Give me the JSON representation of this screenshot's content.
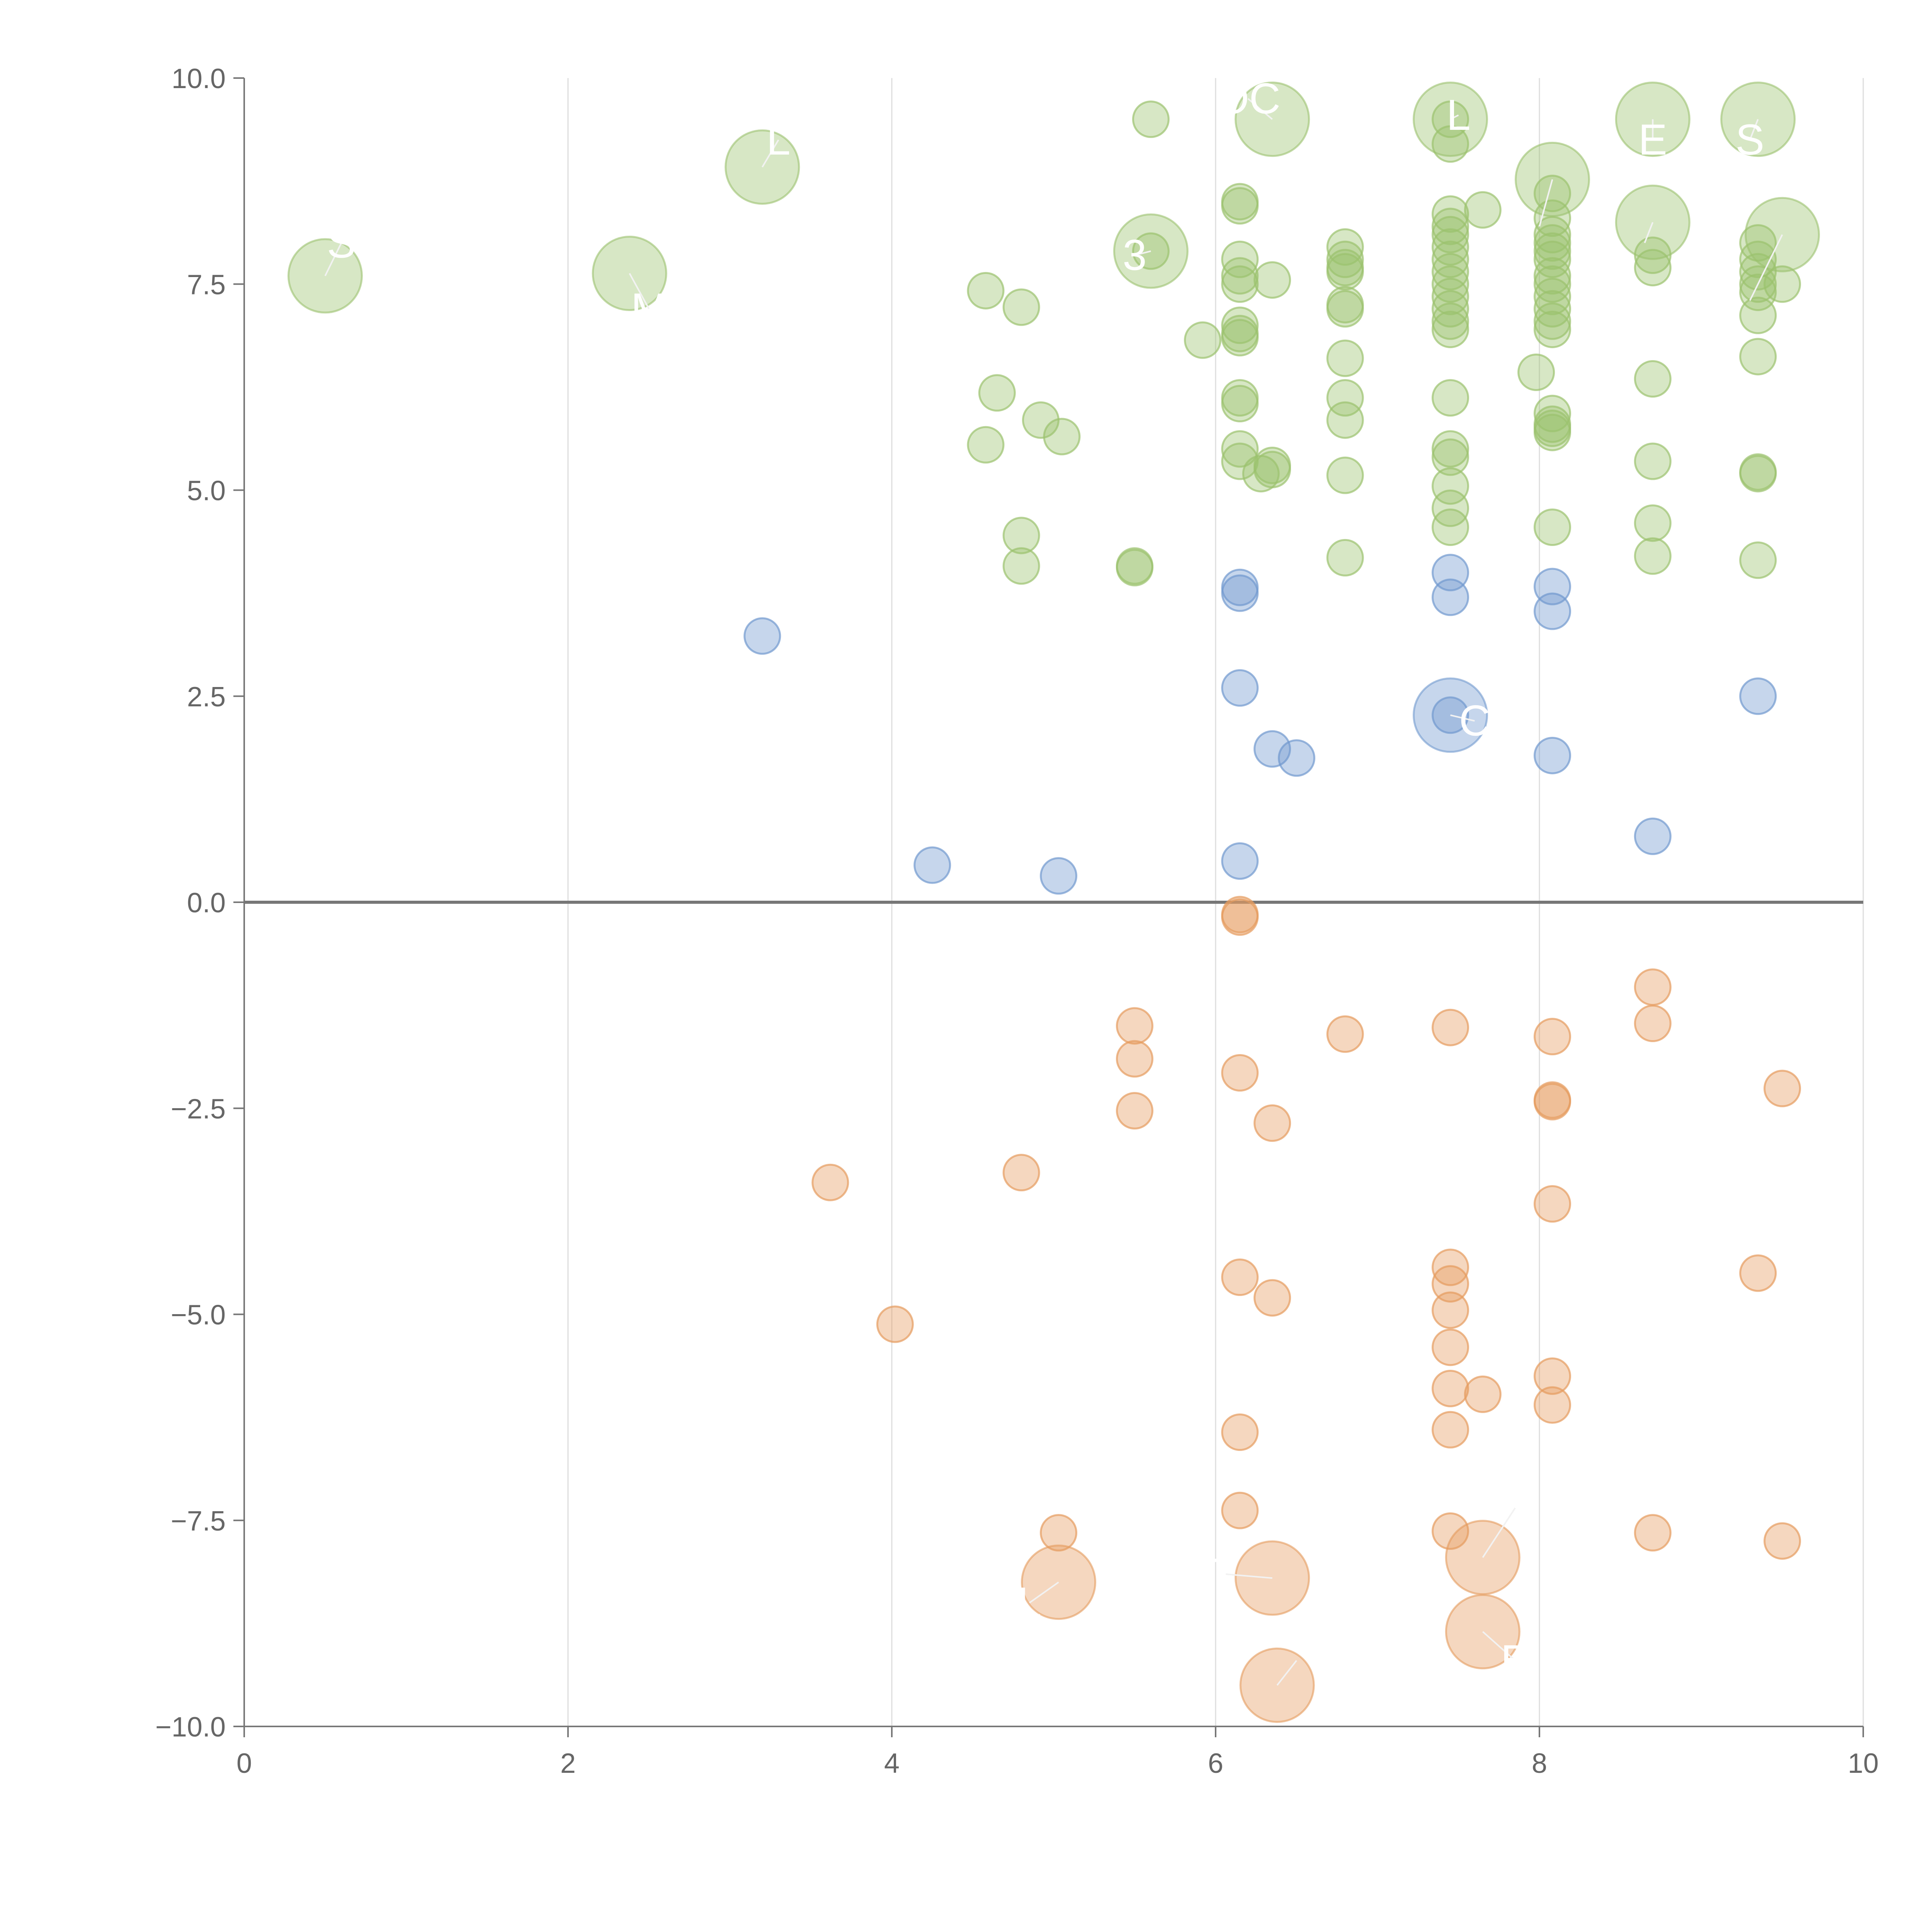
{
  "chart_data": {
    "type": "scatter",
    "title": "",
    "xlabel": "",
    "ylabel": "",
    "xlim": [
      0,
      10
    ],
    "ylim": [
      -10,
      10
    ],
    "x_ticks": [
      0,
      2,
      4,
      6,
      8,
      10
    ],
    "x_tick_labels": [
      "0",
      "2",
      "4",
      "6",
      "8",
      "10"
    ],
    "y_ticks": [
      -10,
      -7.5,
      -5,
      -2.5,
      0,
      2.5,
      5,
      7.5,
      10
    ],
    "y_tick_labels": [
      "−10.0",
      "−7.5",
      "−5.0",
      "−2.5",
      "0.0",
      "2.5",
      "5.0",
      "7.5",
      "10.0"
    ],
    "grid": "vertical",
    "zero_line": true,
    "legend": "none",
    "colors": {
      "green": "#9bc26e",
      "blue": "#7199cf",
      "orange": "#e59b5e",
      "axis": "#777777",
      "grid": "#dddddd",
      "tick_text": "#666666",
      "label_text": "#ffffff"
    },
    "series": [
      {
        "color_key": "green",
        "points": [
          [
            5.6,
            9.5
          ],
          [
            7.45,
            9.5
          ],
          [
            7.45,
            9.2
          ],
          [
            6.15,
            8.5
          ],
          [
            6.15,
            8.45
          ],
          [
            7.65,
            8.4
          ],
          [
            7.45,
            8.35
          ],
          [
            8.08,
            8.6
          ],
          [
            8.08,
            8.3
          ],
          [
            7.45,
            8.2
          ],
          [
            7.45,
            8.1
          ],
          [
            8.08,
            8.1
          ],
          [
            8.08,
            8.0
          ],
          [
            8.08,
            7.9
          ],
          [
            9.35,
            8.0
          ],
          [
            6.8,
            7.95
          ],
          [
            7.45,
            7.95
          ],
          [
            8.7,
            7.85
          ],
          [
            5.6,
            7.9
          ],
          [
            6.15,
            7.8
          ],
          [
            6.8,
            7.8
          ],
          [
            7.45,
            7.8
          ],
          [
            8.08,
            7.8
          ],
          [
            9.35,
            7.8
          ],
          [
            6.8,
            7.7
          ],
          [
            8.7,
            7.7
          ],
          [
            7.45,
            7.65
          ],
          [
            8.08,
            7.6
          ],
          [
            9.35,
            7.65
          ],
          [
            6.15,
            7.6
          ],
          [
            6.35,
            7.55
          ],
          [
            6.8,
            7.65
          ],
          [
            7.45,
            7.5
          ],
          [
            8.08,
            7.5
          ],
          [
            9.35,
            7.5
          ],
          [
            9.5,
            7.5
          ],
          [
            6.15,
            7.5
          ],
          [
            4.58,
            7.42
          ],
          [
            7.45,
            7.35
          ],
          [
            8.08,
            7.35
          ],
          [
            9.35,
            7.4
          ],
          [
            6.8,
            7.25
          ],
          [
            4.8,
            7.22
          ],
          [
            6.8,
            7.2
          ],
          [
            7.45,
            7.2
          ],
          [
            8.08,
            7.2
          ],
          [
            9.35,
            7.12
          ],
          [
            7.45,
            7.05
          ],
          [
            8.08,
            7.05
          ],
          [
            6.15,
            7.0
          ],
          [
            7.45,
            6.95
          ],
          [
            8.08,
            6.95
          ],
          [
            6.15,
            6.9
          ],
          [
            6.15,
            6.85
          ],
          [
            5.92,
            6.82
          ],
          [
            6.8,
            6.6
          ],
          [
            9.35,
            6.62
          ],
          [
            7.98,
            6.43
          ],
          [
            8.7,
            6.35
          ],
          [
            4.65,
            6.18
          ],
          [
            6.15,
            6.12
          ],
          [
            6.8,
            6.12
          ],
          [
            7.45,
            6.12
          ],
          [
            6.15,
            6.05
          ],
          [
            8.08,
            5.93
          ],
          [
            4.92,
            5.85
          ],
          [
            6.8,
            5.85
          ],
          [
            8.08,
            5.8
          ],
          [
            8.08,
            5.75
          ],
          [
            8.08,
            5.7
          ],
          [
            5.05,
            5.65
          ],
          [
            4.58,
            5.55
          ],
          [
            6.15,
            5.5
          ],
          [
            7.45,
            5.5
          ],
          [
            7.45,
            5.4
          ],
          [
            6.15,
            5.35
          ],
          [
            8.7,
            5.35
          ],
          [
            6.35,
            5.3
          ],
          [
            6.35,
            5.25
          ],
          [
            6.28,
            5.2
          ],
          [
            9.35,
            5.22
          ],
          [
            9.35,
            5.2
          ],
          [
            6.8,
            5.18
          ],
          [
            7.45,
            5.05
          ],
          [
            7.45,
            4.78
          ],
          [
            8.7,
            4.6
          ],
          [
            8.08,
            4.55
          ],
          [
            7.45,
            4.55
          ],
          [
            4.8,
            4.45
          ],
          [
            6.8,
            4.18
          ],
          [
            8.7,
            4.2
          ],
          [
            9.35,
            4.15
          ],
          [
            5.5,
            4.08
          ],
          [
            5.5,
            4.06
          ],
          [
            4.8,
            4.08
          ]
        ]
      },
      {
        "color_key": "blue",
        "points": [
          [
            7.45,
            4.0
          ],
          [
            6.15,
            3.82
          ],
          [
            8.08,
            3.83
          ],
          [
            6.15,
            3.75
          ],
          [
            7.45,
            3.7
          ],
          [
            8.08,
            3.53
          ],
          [
            3.2,
            3.23
          ],
          [
            6.15,
            2.6
          ],
          [
            9.35,
            2.5
          ],
          [
            7.45,
            2.27
          ],
          [
            6.35,
            1.86
          ],
          [
            6.5,
            1.75
          ],
          [
            8.08,
            1.78
          ],
          [
            8.7,
            0.8
          ],
          [
            6.15,
            0.5
          ],
          [
            4.25,
            0.45
          ],
          [
            5.03,
            0.32
          ]
        ]
      },
      {
        "color_key": "orange",
        "points": [
          [
            6.15,
            -0.15
          ],
          [
            6.15,
            -0.18
          ],
          [
            8.7,
            -1.03
          ],
          [
            8.7,
            -1.47
          ],
          [
            5.5,
            -1.5
          ],
          [
            7.45,
            -1.52
          ],
          [
            6.8,
            -1.6
          ],
          [
            8.08,
            -1.63
          ],
          [
            5.5,
            -1.9
          ],
          [
            6.15,
            -2.07
          ],
          [
            9.5,
            -2.26
          ],
          [
            8.08,
            -2.4
          ],
          [
            8.08,
            -2.42
          ],
          [
            5.5,
            -2.53
          ],
          [
            6.35,
            -2.68
          ],
          [
            4.8,
            -3.28
          ],
          [
            3.62,
            -3.4
          ],
          [
            8.08,
            -3.66
          ],
          [
            7.45,
            -4.43
          ],
          [
            9.35,
            -4.5
          ],
          [
            6.15,
            -4.55
          ],
          [
            7.45,
            -4.63
          ],
          [
            6.35,
            -4.8
          ],
          [
            7.45,
            -4.95
          ],
          [
            4.02,
            -5.12
          ],
          [
            7.45,
            -5.4
          ],
          [
            8.08,
            -5.75
          ],
          [
            7.45,
            -5.9
          ],
          [
            7.65,
            -5.97
          ],
          [
            8.08,
            -6.1
          ],
          [
            7.45,
            -6.4
          ],
          [
            6.15,
            -6.43
          ],
          [
            6.15,
            -7.38
          ],
          [
            7.45,
            -7.63
          ],
          [
            8.7,
            -7.65
          ],
          [
            5.03,
            -7.65
          ],
          [
            9.5,
            -7.75
          ]
        ]
      }
    ],
    "labeled_points": [
      {
        "x": 0.5,
        "y": 7.6,
        "color_key": "green",
        "label": "S",
        "label_x": 0.6,
        "label_y": 8.0
      },
      {
        "x": 2.38,
        "y": 7.63,
        "color_key": "green",
        "label": "M",
        "label_x": 2.5,
        "label_y": 7.2
      },
      {
        "x": 3.2,
        "y": 8.92,
        "color_key": "green",
        "label": "L",
        "label_x": 3.3,
        "label_y": 9.25
      },
      {
        "x": 6.35,
        "y": 9.5,
        "color_key": "green",
        "label": "OC",
        "label_x": 6.2,
        "label_y": 9.75
      },
      {
        "x": 7.45,
        "y": 9.5,
        "color_key": "green",
        "label": "L",
        "label_x": 7.5,
        "label_y": 9.55
      },
      {
        "x": 8.7,
        "y": 9.5,
        "color_key": "green",
        "label": "E",
        "label_x": 8.7,
        "label_y": 9.25
      },
      {
        "x": 9.35,
        "y": 9.5,
        "color_key": "green",
        "label": "S",
        "label_x": 9.3,
        "label_y": 9.25
      },
      {
        "x": 8.08,
        "y": 8.77,
        "color_key": "green",
        "label": "",
        "label_x": 8.0,
        "label_y": 8.2
      },
      {
        "x": 8.7,
        "y": 8.25,
        "color_key": "green",
        "label": "",
        "label_x": 8.65,
        "label_y": 8.0
      },
      {
        "x": 9.5,
        "y": 8.1,
        "color_key": "green",
        "label": "",
        "label_x": 9.3,
        "label_y": 7.3
      },
      {
        "x": 5.6,
        "y": 7.9,
        "color_key": "green",
        "label": "3",
        "label_x": 5.5,
        "label_y": 7.85
      },
      {
        "x": 7.45,
        "y": 2.27,
        "color_key": "blue",
        "label": "C",
        "label_x": 7.6,
        "label_y": 2.2
      },
      {
        "x": 7.65,
        "y": -7.95,
        "color_key": "orange",
        "label": "",
        "label_x": 7.85,
        "label_y": -7.35
      },
      {
        "x": 6.35,
        "y": -8.2,
        "color_key": "orange",
        "label": "T",
        "label_x": 6.05,
        "label_y": -8.15
      },
      {
        "x": 5.03,
        "y": -8.25,
        "color_key": "orange",
        "label": "L",
        "label_x": 4.85,
        "label_y": -8.5
      },
      {
        "x": 7.65,
        "y": -8.85,
        "color_key": "orange",
        "label": "B",
        "label_x": 7.85,
        "label_y": -9.2
      },
      {
        "x": 6.38,
        "y": -9.5,
        "color_key": "orange",
        "label": "",
        "label_x": 6.5,
        "label_y": -9.2
      }
    ]
  }
}
